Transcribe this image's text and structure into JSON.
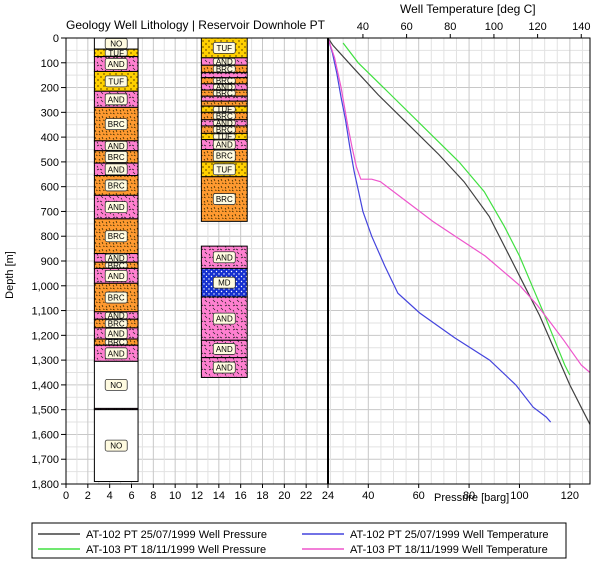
{
  "chart_data": {
    "type": "line",
    "title_left": "Geology Well Lithology | Reservoir Downhole PT",
    "title_top": "Well Temperature [deg C]",
    "ylabel": "Depth [m]",
    "xlabel_bottom": "Pressure [barg]",
    "depth_range": [
      0,
      1800
    ],
    "depth_ticks": [
      "0",
      "100",
      "200",
      "300",
      "400",
      "500",
      "600",
      "700",
      "800",
      "900",
      "1,000",
      "1,100",
      "1,200",
      "1,300",
      "1,400",
      "1,500",
      "1,600",
      "1,700",
      "1,800"
    ],
    "lith_axis_range": [
      0,
      24
    ],
    "lith_axis_ticks": [
      "0",
      "2",
      "4",
      "6",
      "8",
      "10",
      "12",
      "14",
      "16",
      "18",
      "20",
      "22",
      "24"
    ],
    "pressure_range": [
      24,
      128
    ],
    "pressure_ticks": [
      "24",
      "40",
      "60",
      "80",
      "100",
      "120"
    ],
    "temperature_range": [
      24,
      144
    ],
    "temperature_ticks": [
      "40",
      "60",
      "80",
      "100",
      "120",
      "140"
    ],
    "grid": true,
    "legend_position": "bottom",
    "wells": [
      {
        "intervals": [
          {
            "top": 0,
            "bottom": 45,
            "lith": "NO"
          },
          {
            "top": 45,
            "bottom": 75,
            "lith": "TUF"
          },
          {
            "top": 75,
            "bottom": 135,
            "lith": "AND"
          },
          {
            "top": 135,
            "bottom": 215,
            "lith": "TUF"
          },
          {
            "top": 215,
            "bottom": 280,
            "lith": "AND"
          },
          {
            "top": 280,
            "bottom": 415,
            "lith": "BRC"
          },
          {
            "top": 415,
            "bottom": 455,
            "lith": "AND"
          },
          {
            "top": 455,
            "bottom": 505,
            "lith": "BRC"
          },
          {
            "top": 505,
            "bottom": 555,
            "lith": "AND"
          },
          {
            "top": 555,
            "bottom": 635,
            "lith": "BRC"
          },
          {
            "top": 635,
            "bottom": 730,
            "lith": "AND"
          },
          {
            "top": 730,
            "bottom": 870,
            "lith": "BRC"
          },
          {
            "top": 870,
            "bottom": 905,
            "lith": "AND"
          },
          {
            "top": 905,
            "bottom": 930,
            "lith": "BRC"
          },
          {
            "top": 930,
            "bottom": 990,
            "lith": "AND"
          },
          {
            "top": 990,
            "bottom": 1105,
            "lith": "BRC"
          },
          {
            "top": 1105,
            "bottom": 1135,
            "lith": "AND"
          },
          {
            "top": 1135,
            "bottom": 1170,
            "lith": "BRC"
          },
          {
            "top": 1170,
            "bottom": 1215,
            "lith": "AND"
          },
          {
            "top": 1215,
            "bottom": 1240,
            "lith": "BRC"
          },
          {
            "top": 1240,
            "bottom": 1305,
            "lith": "AND"
          },
          {
            "top": 1305,
            "bottom": 1495,
            "lith": "NO"
          },
          {
            "top": 1495,
            "bottom": 1500,
            "lith": "AND"
          },
          {
            "top": 1500,
            "bottom": 1790,
            "lith": "NO"
          }
        ]
      },
      {
        "intervals": [
          {
            "top": 0,
            "bottom": 80,
            "lith": "TUF"
          },
          {
            "top": 80,
            "bottom": 110,
            "lith": "AND"
          },
          {
            "top": 110,
            "bottom": 140,
            "lith": "BRC"
          },
          {
            "top": 140,
            "bottom": 160,
            "lith": "AND"
          },
          {
            "top": 160,
            "bottom": 185,
            "lith": "BRC"
          },
          {
            "top": 185,
            "bottom": 210,
            "lith": "AND"
          },
          {
            "top": 210,
            "bottom": 235,
            "lith": "BRC"
          },
          {
            "top": 235,
            "bottom": 255,
            "lith": "AND"
          },
          {
            "top": 255,
            "bottom": 275,
            "lith": "BRC"
          },
          {
            "top": 275,
            "bottom": 300,
            "lith": "TUF"
          },
          {
            "top": 300,
            "bottom": 330,
            "lith": "BRC"
          },
          {
            "top": 330,
            "bottom": 355,
            "lith": "AND"
          },
          {
            "top": 355,
            "bottom": 385,
            "lith": "BRC"
          },
          {
            "top": 385,
            "bottom": 410,
            "lith": "TUF"
          },
          {
            "top": 410,
            "bottom": 450,
            "lith": "AND"
          },
          {
            "top": 450,
            "bottom": 500,
            "lith": "BRC"
          },
          {
            "top": 500,
            "bottom": 560,
            "lith": "TUF"
          },
          {
            "top": 560,
            "bottom": 740,
            "lith": "BRC"
          },
          {
            "top": 840,
            "bottom": 930,
            "lith": "AND"
          },
          {
            "top": 930,
            "bottom": 1045,
            "lith": "MD"
          },
          {
            "top": 1045,
            "bottom": 1220,
            "lith": "AND"
          },
          {
            "top": 1220,
            "bottom": 1290,
            "lith": "AND"
          },
          {
            "top": 1290,
            "bottom": 1370,
            "lith": "AND"
          }
        ]
      }
    ],
    "series": [
      {
        "name": "AT-102 PT 25/07/1999 Well Pressure",
        "axis": "pressure",
        "color": "#404040",
        "points": [
          [
            24,
            0
          ],
          [
            26,
            30
          ],
          [
            34,
            120
          ],
          [
            44,
            230
          ],
          [
            56,
            350
          ],
          [
            68,
            470
          ],
          [
            78,
            580
          ],
          [
            88,
            720
          ],
          [
            96,
            880
          ],
          [
            102,
            1000
          ],
          [
            108,
            1120
          ],
          [
            114,
            1260
          ],
          [
            120,
            1400
          ],
          [
            125,
            1500
          ],
          [
            128,
            1560
          ]
        ]
      },
      {
        "name": "AT-103 PT 18/11/1999 Well Pressure",
        "axis": "pressure",
        "color": "#40e040",
        "points": [
          [
            30,
            20
          ],
          [
            36,
            100
          ],
          [
            48,
            220
          ],
          [
            62,
            360
          ],
          [
            76,
            500
          ],
          [
            86,
            620
          ],
          [
            94,
            760
          ],
          [
            100,
            880
          ],
          [
            105,
            1000
          ],
          [
            110,
            1120
          ],
          [
            114,
            1220
          ],
          [
            118,
            1320
          ],
          [
            120,
            1360
          ]
        ]
      },
      {
        "name": "AT-102 PT 25/07/1999 Well Temperature",
        "axis": "temperature",
        "color": "#4444dd",
        "points": [
          [
            24,
            0
          ],
          [
            26,
            60
          ],
          [
            28,
            140
          ],
          [
            30,
            240
          ],
          [
            32,
            330
          ],
          [
            34,
            440
          ],
          [
            36,
            540
          ],
          [
            38,
            620
          ],
          [
            40,
            700
          ],
          [
            44,
            800
          ],
          [
            50,
            920
          ],
          [
            56,
            1030
          ],
          [
            66,
            1110
          ],
          [
            82,
            1210
          ],
          [
            98,
            1300
          ],
          [
            110,
            1400
          ],
          [
            118,
            1490
          ],
          [
            124,
            1530
          ],
          [
            126,
            1550
          ]
        ]
      },
      {
        "name": "AT-103 PT 18/11/1999 Well Temperature",
        "axis": "temperature",
        "color": "#ee55cc",
        "points": [
          [
            24,
            0
          ],
          [
            27,
            80
          ],
          [
            30,
            200
          ],
          [
            33,
            350
          ],
          [
            35,
            440
          ],
          [
            37,
            520
          ],
          [
            39,
            570
          ],
          [
            44,
            570
          ],
          [
            48,
            580
          ],
          [
            60,
            660
          ],
          [
            72,
            740
          ],
          [
            84,
            810
          ],
          [
            96,
            880
          ],
          [
            104,
            940
          ],
          [
            112,
            1000
          ],
          [
            120,
            1080
          ],
          [
            126,
            1150
          ],
          [
            132,
            1220
          ],
          [
            136,
            1270
          ],
          [
            140,
            1320
          ],
          [
            144,
            1350
          ]
        ]
      }
    ]
  }
}
